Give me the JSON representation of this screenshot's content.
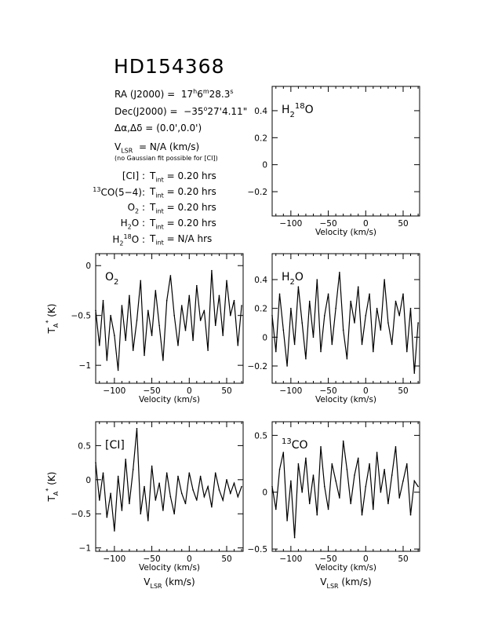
{
  "header": {
    "title": "HD154368",
    "ra_label": "RA (J2000) =",
    "ra_h": "17",
    "ra_m": "6",
    "ra_s": "28.3",
    "dec_label": "Dec(J2000) =",
    "dec_deg": "−35",
    "dec_rest": "27'4.11\"",
    "offset_label": "Δα,Δδ =",
    "offset_value": "(0.0',0.0')",
    "vlsr_label": "V",
    "vlsr_sub": "LSR",
    "vlsr_value": "= N/A  (km/s)",
    "note": "(no Gaussian fit possible for [CI])"
  },
  "integration": [
    {
      "line": "[CI] :",
      "value": "= 0.20 hrs"
    },
    {
      "line": "CO(5−4):",
      "line_sup": "13",
      "value": "= 0.20 hrs"
    },
    {
      "line": "O",
      "line_sub": "2",
      "line_tail": " :",
      "value": "= 0.20 hrs"
    },
    {
      "line": "H",
      "line_sub": "2",
      "line_tail": "O :",
      "value": "= 0.20 hrs"
    },
    {
      "line": "H",
      "line_sub": "2",
      "line_sup2": "18",
      "line_tail": "O :",
      "value": "= N/A  hrs"
    }
  ],
  "tint_label": "T",
  "tint_sub": "int",
  "chart_data": [
    {
      "id": "h218o",
      "type": "line",
      "label": "H",
      "label_sub": "2",
      "label_sup": "18",
      "label_tail": "O",
      "xlim": [
        -125,
        72
      ],
      "ylim": [
        -0.38,
        0.58
      ],
      "xticks": [
        -100,
        -50,
        0,
        50
      ],
      "yticks": [
        -0.2,
        0,
        0.2,
        0.4
      ],
      "xlabel": "Velocity (km/s)",
      "ylabel": "",
      "series": []
    },
    {
      "id": "o2",
      "type": "line",
      "label": "O",
      "label_sub": "2",
      "xlim": [
        -125,
        72
      ],
      "ylim": [
        -1.18,
        0.12
      ],
      "xticks": [
        -100,
        -50,
        0,
        50
      ],
      "yticks": [
        -1,
        -0.5,
        0
      ],
      "xlabel": "Velocity (km/s)",
      "ylabel": "T",
      "x": [
        -125,
        -120,
        -115,
        -110,
        -105,
        -100,
        -95,
        -90,
        -85,
        -80,
        -75,
        -70,
        -65,
        -60,
        -55,
        -50,
        -45,
        -40,
        -35,
        -30,
        -25,
        -20,
        -15,
        -10,
        -5,
        0,
        5,
        10,
        15,
        20,
        25,
        30,
        35,
        40,
        45,
        50,
        55,
        60,
        65,
        70
      ],
      "y": [
        -0.45,
        -0.8,
        -0.35,
        -0.95,
        -0.5,
        -0.7,
        -1.05,
        -0.4,
        -0.75,
        -0.3,
        -0.85,
        -0.55,
        -0.15,
        -0.9,
        -0.45,
        -0.7,
        -0.25,
        -0.6,
        -0.95,
        -0.35,
        -0.1,
        -0.5,
        -0.8,
        -0.4,
        -0.65,
        -0.3,
        -0.75,
        -0.2,
        -0.55,
        -0.45,
        -0.85,
        -0.05,
        -0.6,
        -0.3,
        -0.7,
        -0.15,
        -0.5,
        -0.35,
        -0.8,
        -0.4
      ]
    },
    {
      "id": "h2o",
      "type": "line",
      "label": "H",
      "label_sub": "2",
      "label_tail": "O",
      "xlim": [
        -125,
        72
      ],
      "ylim": [
        -0.32,
        0.58
      ],
      "xticks": [
        -100,
        -50,
        0,
        50
      ],
      "yticks": [
        -0.2,
        0,
        0.2,
        0.4
      ],
      "xlabel": "Velocity (km/s)",
      "ylabel": "",
      "x": [
        -125,
        -120,
        -115,
        -110,
        -105,
        -100,
        -95,
        -90,
        -85,
        -80,
        -75,
        -70,
        -65,
        -60,
        -55,
        -50,
        -45,
        -40,
        -35,
        -30,
        -25,
        -20,
        -15,
        -10,
        -5,
        0,
        5,
        10,
        15,
        20,
        25,
        30,
        35,
        40,
        45,
        50,
        55,
        60,
        65,
        70
      ],
      "y": [
        0.15,
        -0.1,
        0.3,
        0.05,
        -0.2,
        0.2,
        -0.05,
        0.35,
        0.1,
        -0.15,
        0.25,
        0.0,
        0.4,
        -0.1,
        0.15,
        0.3,
        -0.05,
        0.2,
        0.45,
        0.05,
        -0.15,
        0.25,
        0.1,
        0.35,
        -0.05,
        0.15,
        0.3,
        -0.1,
        0.2,
        0.05,
        0.4,
        0.1,
        -0.05,
        0.25,
        0.15,
        0.3,
        -0.1,
        0.2,
        -0.25,
        0.1
      ]
    },
    {
      "id": "ci",
      "type": "line",
      "label": "[CI]",
      "xlim": [
        -125,
        72
      ],
      "ylim": [
        -1.05,
        0.85
      ],
      "xticks": [
        -100,
        -50,
        0,
        50
      ],
      "yticks": [
        -1,
        -0.5,
        0,
        0.5
      ],
      "xlabel": "Velocity (km/s)",
      "ylabel": "T",
      "x": [
        -125,
        -120,
        -115,
        -110,
        -105,
        -100,
        -95,
        -90,
        -85,
        -80,
        -75,
        -70,
        -65,
        -60,
        -55,
        -50,
        -45,
        -40,
        -35,
        -30,
        -25,
        -20,
        -15,
        -10,
        -5,
        0,
        5,
        10,
        15,
        20,
        25,
        30,
        35,
        40,
        45,
        50,
        55,
        60,
        65,
        70
      ],
      "y": [
        0.25,
        -0.3,
        0.1,
        -0.55,
        -0.2,
        -0.75,
        0.05,
        -0.45,
        0.3,
        -0.35,
        0.15,
        0.75,
        -0.5,
        -0.1,
        -0.6,
        0.2,
        -0.3,
        -0.05,
        -0.45,
        0.1,
        -0.25,
        -0.5,
        0.05,
        -0.2,
        -0.35,
        0.1,
        -0.15,
        -0.3,
        0.05,
        -0.25,
        -0.1,
        -0.4,
        0.1,
        -0.15,
        -0.3,
        0.0,
        -0.2,
        -0.05,
        -0.25,
        -0.1
      ]
    },
    {
      "id": "co13",
      "type": "line",
      "label": "CO",
      "label_sup": "13",
      "xlim": [
        -125,
        72
      ],
      "ylim": [
        -0.52,
        0.62
      ],
      "xticks": [
        -100,
        -50,
        0,
        50
      ],
      "yticks": [
        -0.5,
        0,
        0.5
      ],
      "xlabel": "Velocity (km/s)",
      "ylabel": "",
      "x": [
        -125,
        -120,
        -115,
        -110,
        -105,
        -100,
        -95,
        -90,
        -85,
        -80,
        -75,
        -70,
        -65,
        -60,
        -55,
        -50,
        -45,
        -40,
        -35,
        -30,
        -25,
        -20,
        -15,
        -10,
        -5,
        0,
        5,
        10,
        15,
        20,
        25,
        30,
        35,
        40,
        45,
        50,
        55,
        60,
        65,
        70
      ],
      "y": [
        0.05,
        -0.15,
        0.2,
        0.35,
        -0.25,
        0.1,
        -0.4,
        0.25,
        0.0,
        0.3,
        -0.1,
        0.15,
        -0.2,
        0.4,
        0.05,
        -0.15,
        0.25,
        0.1,
        -0.05,
        0.45,
        0.2,
        -0.1,
        0.15,
        0.3,
        -0.2,
        0.05,
        0.25,
        -0.15,
        0.35,
        0.0,
        0.2,
        -0.1,
        0.15,
        0.4,
        -0.05,
        0.1,
        0.25,
        -0.2,
        0.1,
        0.05
      ]
    }
  ],
  "vlsr_axis_label": "V",
  "vlsr_axis_sub": "LSR",
  "vlsr_axis_unit": " (km/s)",
  "t_axis_label": "T",
  "t_axis_sub": "A",
  "t_axis_sup": "*",
  "t_axis_unit": " (K)"
}
